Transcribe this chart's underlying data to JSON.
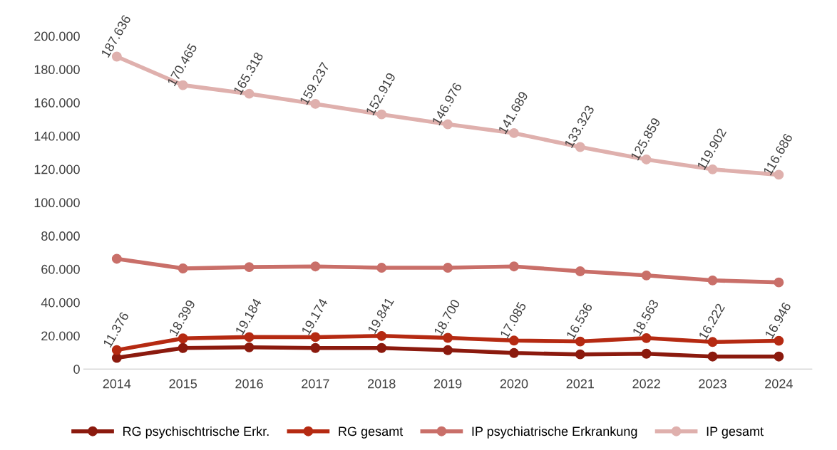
{
  "chart_data": {
    "type": "line",
    "categories": [
      "2014",
      "2015",
      "2016",
      "2017",
      "2018",
      "2019",
      "2020",
      "2021",
      "2022",
      "2023",
      "2024"
    ],
    "series": [
      {
        "name": "RG psychischtrische Erkr.",
        "color": "#8b1a0e",
        "values": [
          6700,
          12600,
          13000,
          12600,
          12600,
          11300,
          9600,
          8800,
          9200,
          7500,
          7500
        ]
      },
      {
        "name": "RG gesamt",
        "color": "#b52a12",
        "values": [
          11376,
          18399,
          19184,
          19174,
          19841,
          18700,
          17085,
          16536,
          18563,
          16222,
          16946
        ],
        "value_labels": [
          "11.376",
          "18.399",
          "19.184",
          "19.174",
          "19.841",
          "18.700",
          "17.085",
          "16.536",
          "18.563",
          "16.222",
          "16.946"
        ]
      },
      {
        "name": "IP psychiatrische Erkrankung",
        "color": "#c96f69",
        "values": [
          66200,
          60400,
          61200,
          61600,
          60800,
          60800,
          61600,
          58700,
          56200,
          53200,
          52000
        ]
      },
      {
        "name": "IP gesamt",
        "color": "#dfb0ad",
        "values": [
          187636,
          170465,
          165318,
          159237,
          152919,
          146976,
          141689,
          133323,
          125859,
          119902,
          116686
        ],
        "value_labels": [
          "187.636",
          "170.465",
          "165.318",
          "159.237",
          "152.919",
          "146.976",
          "141.689",
          "133.323",
          "125.859",
          "119.902",
          "116.686"
        ]
      }
    ],
    "ylim": [
      0,
      200000
    ],
    "yticks": [
      0,
      {
        "value": 20000,
        "label": "20.000"
      },
      {
        "value": 40000,
        "label": "40.000"
      },
      {
        "value": 60000,
        "label": "60.000"
      },
      {
        "value": 80000,
        "label": "80.000"
      },
      {
        "value": 100000,
        "label": "100.000"
      },
      {
        "value": 120000,
        "label": "120.000"
      },
      {
        "value": 140000,
        "label": "140.000"
      },
      {
        "value": 160000,
        "label": "160.000"
      },
      {
        "value": 180000,
        "label": "180.000"
      },
      {
        "value": 200000,
        "label": "200.000"
      }
    ],
    "grid": false,
    "legend": "bottom",
    "marker": "circle",
    "line_style": "solid"
  }
}
